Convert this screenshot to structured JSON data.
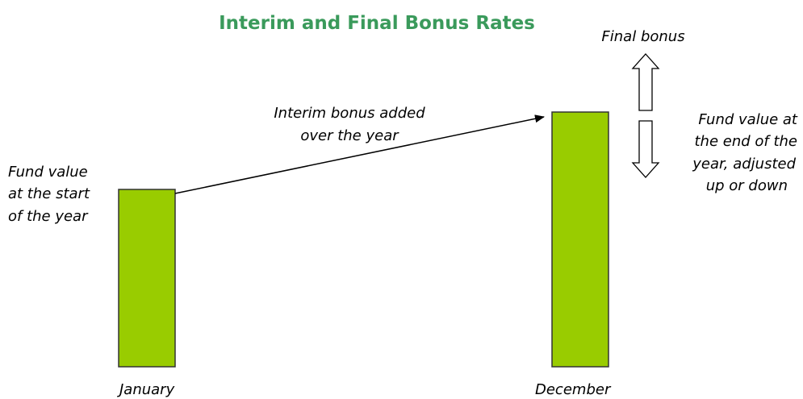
{
  "title": "Interim and Final Bonus Rates",
  "start_label": [
    "Fund value",
    "at the start",
    "of the year"
  ],
  "interim_label": [
    "Interim bonus added",
    "over the year"
  ],
  "final_bonus_label": "Final bonus",
  "end_label": [
    "Fund value at",
    "the end of the",
    "year, adjusted",
    "up or down"
  ],
  "months": [
    "January",
    "December"
  ]
}
